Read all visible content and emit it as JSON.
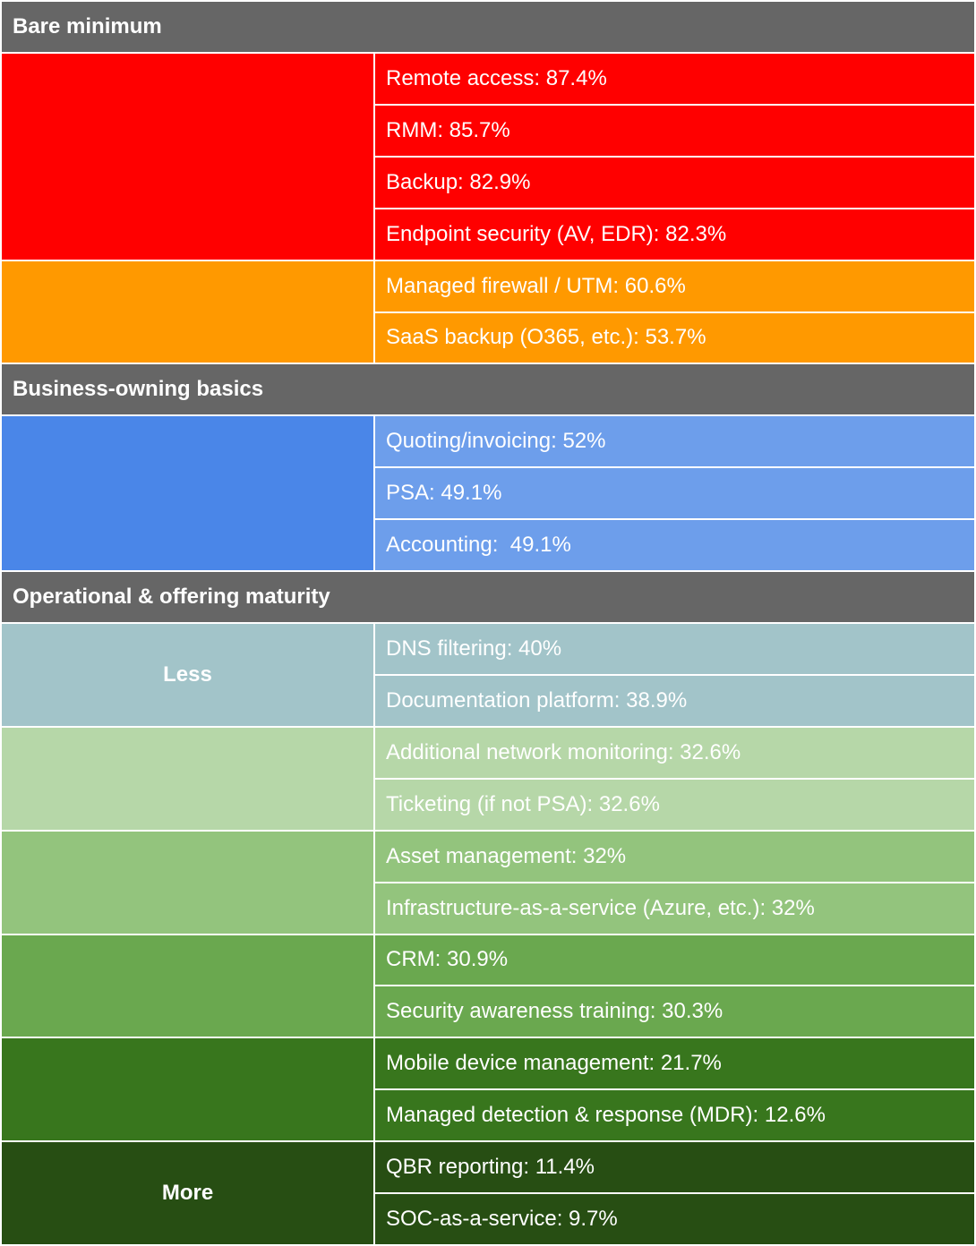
{
  "sections": [
    {
      "title": "Bare minimum",
      "groups": [
        {
          "color": "#ff0000",
          "items": [
            "Remote access: 87.4%",
            "RMM: 85.7%",
            "Backup: 82.9%",
            "Endpoint security (AV, EDR): 82.3%"
          ]
        },
        {
          "color": "#ff9900",
          "items": [
            "Managed firewall / UTM: 60.6%",
            "SaaS backup (O365, etc.): 53.7%"
          ]
        }
      ]
    },
    {
      "title": "Business-owning basics",
      "groups": [
        {
          "color": "#4a86e8",
          "item_color": "#6d9eeb",
          "items": [
            "Quoting/invoicing: 52%",
            "PSA: 49.1%",
            "Accounting:  49.1%"
          ]
        }
      ]
    },
    {
      "title": "Operational & offering maturity",
      "groups": [
        {
          "label": "Less",
          "color": "#a2c4c9",
          "items": [
            "DNS filtering: 40%",
            "Documentation platform: 38.9%"
          ]
        },
        {
          "color": "#b6d7a8",
          "items": [
            "Additional network monitoring: 32.6%",
            "Ticketing (if not PSA): 32.6%"
          ]
        },
        {
          "color": "#93c47d",
          "items": [
            "Asset management: 32%",
            "Infrastructure-as-a-service (Azure, etc.): 32%"
          ]
        },
        {
          "color": "#6aa84f",
          "items": [
            "CRM: 30.9%",
            "Security awareness training: 30.3%"
          ]
        },
        {
          "color": "#38761d",
          "items": [
            "Mobile device management: 21.7%",
            "Managed detection & response (MDR): 12.6%"
          ]
        },
        {
          "label": "More",
          "color": "#274e13",
          "items": [
            "QBR reporting: 11.4%",
            "SOC-as-a-service: 9.7%"
          ]
        }
      ]
    }
  ]
}
